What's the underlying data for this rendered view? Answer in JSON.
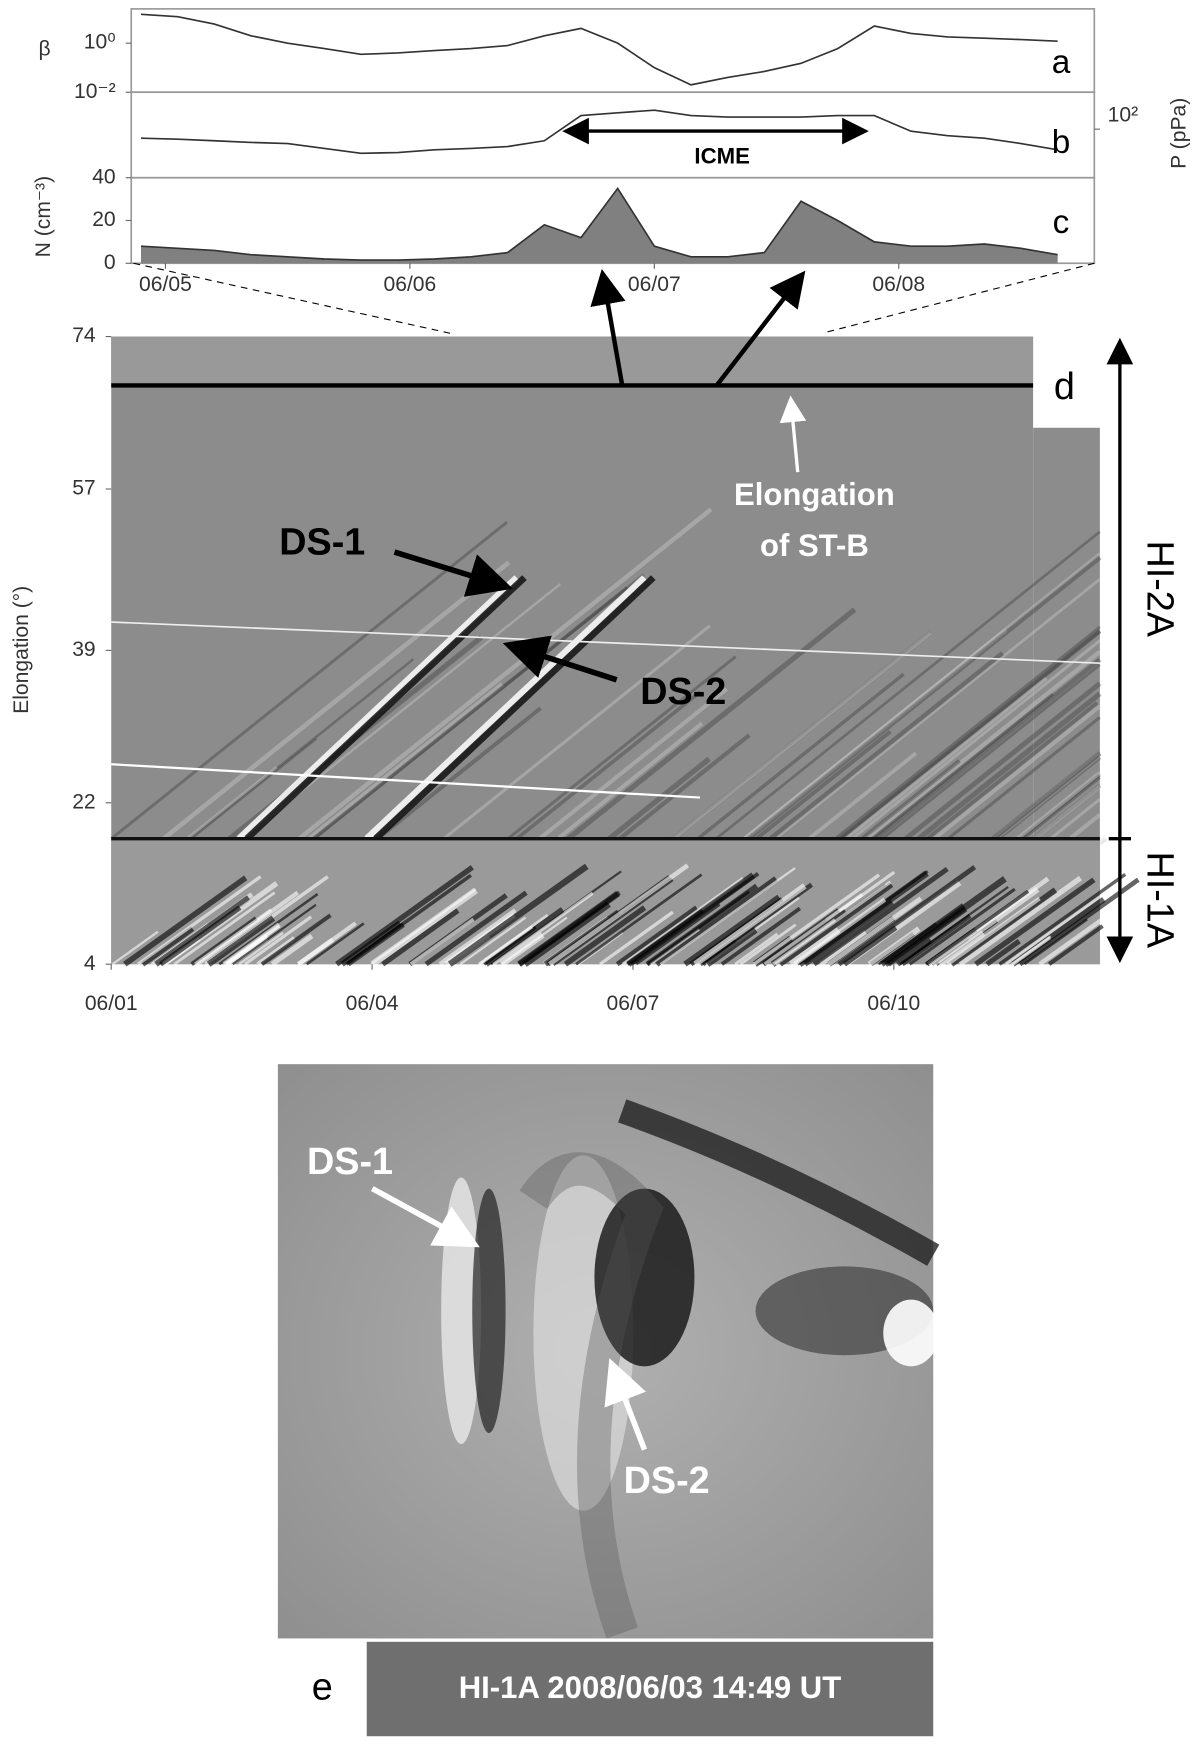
{
  "chart_data": [
    {
      "type": "line",
      "ylabel": "β",
      "label": "a",
      "log": true,
      "color": "#333333",
      "x": [
        4.9,
        5.05,
        5.2,
        5.35,
        5.5,
        5.65,
        5.8,
        5.95,
        6.1,
        6.25,
        6.4,
        6.55,
        6.7,
        6.85,
        7.0,
        7.15,
        7.3,
        7.45,
        7.6,
        7.75,
        7.9,
        8.05,
        8.2,
        8.35,
        8.5,
        8.65
      ],
      "values": [
        15,
        12,
        6,
        2,
        1,
        0.6,
        0.35,
        0.4,
        0.5,
        0.6,
        0.8,
        2,
        4,
        1,
        0.1,
        0.02,
        0.04,
        0.07,
        0.15,
        0.6,
        5,
        2.5,
        1.8,
        1.6,
        1.4,
        1.2
      ],
      "xlim": [
        4.86,
        8.8
      ],
      "ylim": [
        0.01,
        25
      ],
      "yticks": [
        {
          "value": 1,
          "label": "10⁰"
        },
        {
          "value": 0.01,
          "label": "10⁻²"
        }
      ]
    },
    {
      "type": "line",
      "ylabel": "P (pPa)",
      "label": "b",
      "log": true,
      "color": "#333333",
      "x": [
        4.9,
        5.05,
        5.2,
        5.35,
        5.5,
        5.65,
        5.8,
        5.95,
        6.1,
        6.25,
        6.4,
        6.55,
        6.7,
        6.85,
        7.0,
        7.15,
        7.3,
        7.45,
        7.6,
        7.75,
        7.9,
        8.05,
        8.2,
        8.35,
        8.5,
        8.65
      ],
      "values": [
        80,
        78,
        75,
        72,
        70,
        62,
        55,
        56,
        60,
        62,
        65,
        75,
        140,
        150,
        160,
        140,
        135,
        135,
        135,
        140,
        140,
        95,
        85,
        80,
        70,
        60
      ],
      "xlim": [
        4.86,
        8.8
      ],
      "ylim": [
        30,
        250
      ],
      "yticks": [
        {
          "value": 100,
          "label": "10²"
        }
      ],
      "annotation": "ICME"
    },
    {
      "type": "area",
      "ylabel": "N (cm⁻³)",
      "label": "c",
      "color": "#808080",
      "x": [
        4.9,
        5.05,
        5.2,
        5.35,
        5.5,
        5.65,
        5.8,
        5.95,
        6.1,
        6.25,
        6.4,
        6.55,
        6.7,
        6.85,
        7.0,
        7.15,
        7.3,
        7.45,
        7.6,
        7.75,
        7.9,
        8.05,
        8.2,
        8.35,
        8.5,
        8.65
      ],
      "values": [
        8,
        7,
        6,
        4,
        3,
        2,
        1.5,
        1.5,
        2,
        3,
        5,
        18,
        12,
        35,
        8,
        3,
        3,
        5,
        29,
        20,
        10,
        8,
        8,
        9,
        7,
        4
      ],
      "xlim": [
        4.86,
        8.8
      ],
      "ylim": [
        0,
        40
      ],
      "yticks": [
        0,
        20,
        40
      ],
      "xticks": [
        {
          "value": 5,
          "label": "06/05"
        },
        {
          "value": 6,
          "label": "06/06"
        },
        {
          "value": 7,
          "label": "06/07"
        },
        {
          "value": 8,
          "label": "06/08"
        }
      ]
    },
    {
      "type": "image",
      "ylabel": "Elongation (°)",
      "label": "d",
      "xlim": [
        1,
        12.37
      ],
      "ylim": [
        4,
        74
      ],
      "yticks": [
        4,
        22,
        39,
        57,
        74
      ],
      "xticks": [
        {
          "value": 1,
          "label": "06/01"
        },
        {
          "value": 4,
          "label": "06/04"
        },
        {
          "value": 7,
          "label": "06/07"
        },
        {
          "value": 10,
          "label": "06/10"
        }
      ],
      "annotations": [
        "DS-1",
        "DS-2",
        "Elongation",
        "of ST-B",
        "HI-2A",
        "HI-1A"
      ]
    }
  ],
  "panel_e": {
    "label": "e",
    "caption": "HI-1A 2008/06/03 14:49 UT",
    "annotations": [
      "DS-1",
      "DS-2"
    ]
  }
}
